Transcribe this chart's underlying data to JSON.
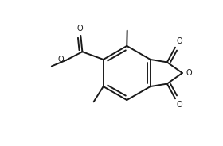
{
  "bg": "#ffffff",
  "lc": "#1a1a1a",
  "lw": 1.4,
  "fs": 7.0,
  "fig_w": 2.8,
  "fig_h": 1.84,
  "dpi": 100,
  "xlim": [
    0.02,
    0.98
  ],
  "ylim": [
    0.05,
    0.95
  ]
}
